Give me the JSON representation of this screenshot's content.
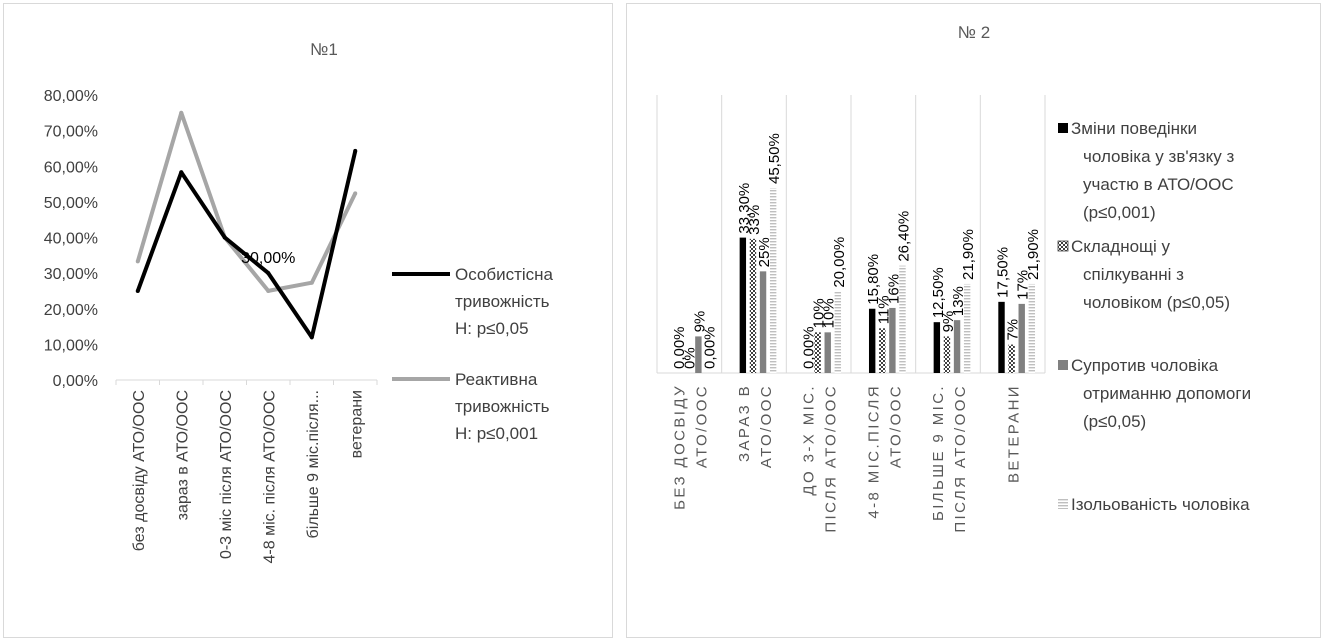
{
  "chart_data": [
    {
      "type": "line",
      "title": "№1",
      "categories": [
        "без досвіду АТО/ООС",
        "зараз в АТО/ООС",
        "0-3 міс після АТО/ООС",
        "4-8 міс. після АТО/ООС",
        "більше 9 міс.після...",
        "ветерани"
      ],
      "yticks": [
        "0,00%",
        "10,00%",
        "20,00%",
        "30,00%",
        "40,00%",
        "50,00%",
        "60,00%",
        "70,00%",
        "80,00%"
      ],
      "ylim": [
        0,
        80
      ],
      "series": [
        {
          "name": "Особистісна тривожність Н: р≤0,05",
          "color": "#000000",
          "values": [
            25,
            58.3,
            40,
            30,
            12,
            64.3
          ]
        },
        {
          "name": "Реактивна тривожність Н: р≤0,001",
          "color": "#a6a6a6",
          "values": [
            33.3,
            75,
            40,
            25,
            27.3,
            52.4
          ]
        }
      ],
      "annotations": [
        {
          "text": "30,00%",
          "series": 0,
          "index": 3
        }
      ],
      "legend": "right",
      "grid": false
    },
    {
      "type": "bar",
      "title": "№ 2",
      "categories": [
        "БЕЗ ДОСВІДУ АТО/ООС",
        "ЗАРАЗ В АТО/ООС",
        "ДО 3-Х МІС. ПІСЛЯ АТО/ООС",
        "4-8 МІС.ПІСЛЯ АТО/ООС",
        "БІЛЬШЕ 9 МІС. ПІСЛЯ АТО/ООС",
        "ВЕТЕРАНИ"
      ],
      "ylim": [
        0,
        45.5
      ],
      "series": [
        {
          "name": "Зміни поведінки чоловіка у зв'язку з участю в АТО/ООС (р≤0,001)",
          "pattern": "solid",
          "color": "#000000",
          "values": [
            0,
            33.3,
            0,
            15.8,
            12.5,
            17.5
          ],
          "labels": [
            "0,00%",
            "33,30%",
            "0,00%",
            "15,80%",
            "12,50%",
            "17,50%"
          ]
        },
        {
          "name": "Складнощі у спілкуванні з чоловіком (р≤0,05)",
          "pattern": "checker",
          "color": "#404040",
          "values": [
            0,
            33,
            10,
            11,
            9,
            7
          ],
          "labels": [
            "0%",
            "33%",
            "10%",
            "11%",
            "9%",
            "7%"
          ]
        },
        {
          "name": "Супротив чоловіка отриманню допомоги (р≤0,05)",
          "pattern": "solid",
          "color": "#808080",
          "values": [
            9,
            25,
            10,
            16,
            13,
            17
          ],
          "labels": [
            "9%",
            "25%",
            "10%",
            "16%",
            "13%",
            "17%"
          ]
        },
        {
          "name": "Ізольованість чоловіка",
          "pattern": "lines",
          "color": "#bfbfbf",
          "values": [
            0,
            45.5,
            20,
            26.4,
            21.9,
            21.9
          ],
          "labels": [
            "0,00%",
            "45,50%",
            "20,00%",
            "26,40%",
            "21,90%",
            "21,90%"
          ]
        }
      ],
      "legend": "right",
      "grid": "vertical separators"
    }
  ]
}
